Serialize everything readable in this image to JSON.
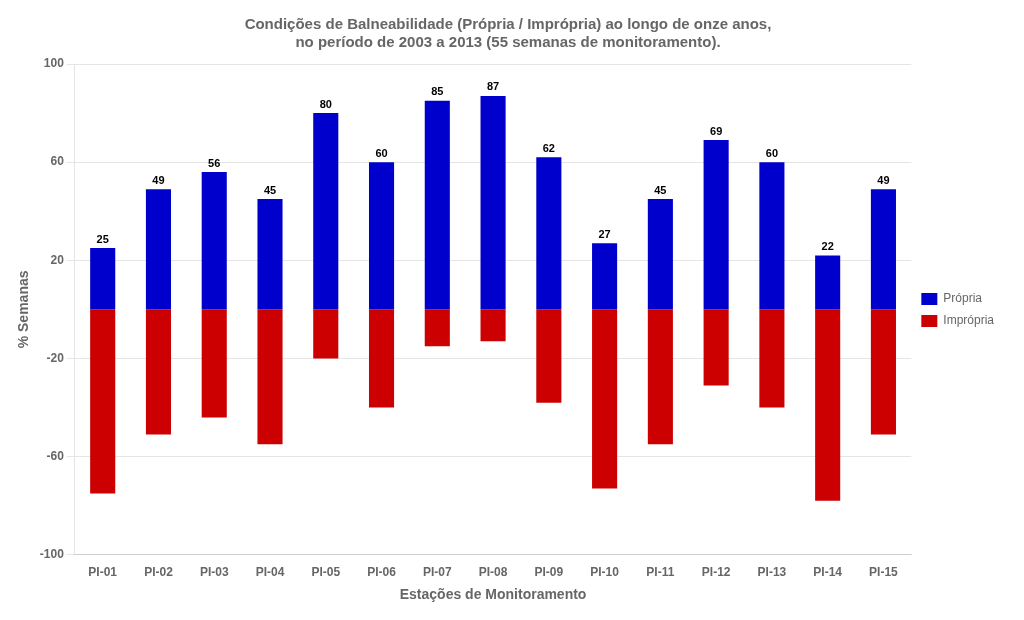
{
  "chart_data": {
    "type": "bar",
    "title": "Condições de Balneabilidade (Própria / Imprópria) ao longo de onze anos,\nno período de 2003 a 2013 (55 semanas de monitoramento).",
    "xlabel": "Estações de Monitoramento",
    "ylabel": "% Semanas",
    "categories": [
      "PI-01",
      "PI-02",
      "PI-03",
      "PI-04",
      "PI-05",
      "PI-06",
      "PI-07",
      "PI-08",
      "PI-09",
      "PI-10",
      "PI-11",
      "PI-12",
      "PI-13",
      "PI-14",
      "PI-15"
    ],
    "series": [
      {
        "name": "Própria",
        "color": "#0000cc",
        "data_labels": true,
        "values": [
          25,
          49,
          56,
          45,
          80,
          60,
          85,
          87,
          62,
          27,
          45,
          69,
          60,
          22,
          49
        ]
      },
      {
        "name": "Imprópria",
        "color": "#cc0000",
        "values": [
          -75,
          -51,
          -44,
          -55,
          -20,
          -40,
          -15,
          -13,
          -38,
          -73,
          -55,
          -31,
          -40,
          -78,
          -51
        ]
      }
    ],
    "ylim": [
      -100,
      100
    ],
    "yticks": [
      -100,
      -60,
      -20,
      20,
      60,
      100
    ],
    "grid": true,
    "legend": "right"
  }
}
